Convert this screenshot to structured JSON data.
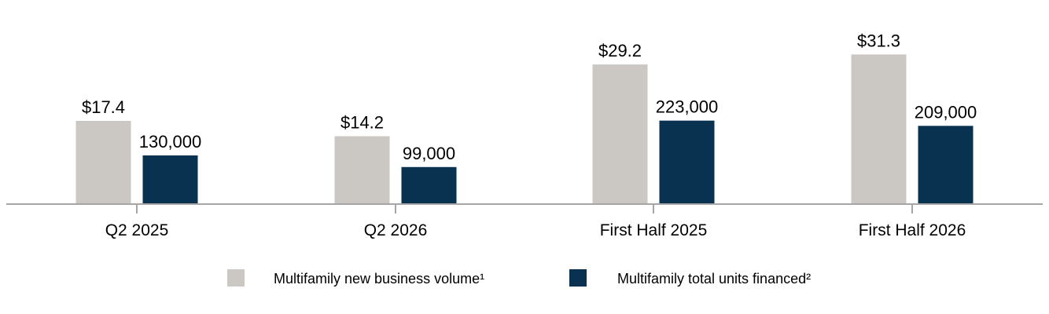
{
  "chart_data": {
    "type": "bar",
    "categories": [
      "Q2 2025",
      "Q2 2026",
      "First Half 2025",
      "First Half 2026"
    ],
    "series": [
      {
        "name": "Multifamily new business volume¹",
        "color": "#cbc8c3",
        "values": [
          17.4,
          14.2,
          29.2,
          31.3
        ],
        "value_labels": [
          "$17.4",
          "$14.2",
          "$29.2",
          "$31.3"
        ]
      },
      {
        "name": "Multifamily total units financed²",
        "color": "#08324f",
        "values": [
          130000,
          99000,
          223000,
          209000
        ],
        "value_labels": [
          "130,000",
          "99,000",
          "223,000",
          "209,000"
        ]
      }
    ],
    "axis_color": "#a6a6a6",
    "legend_position": "bottom",
    "grid": false
  }
}
